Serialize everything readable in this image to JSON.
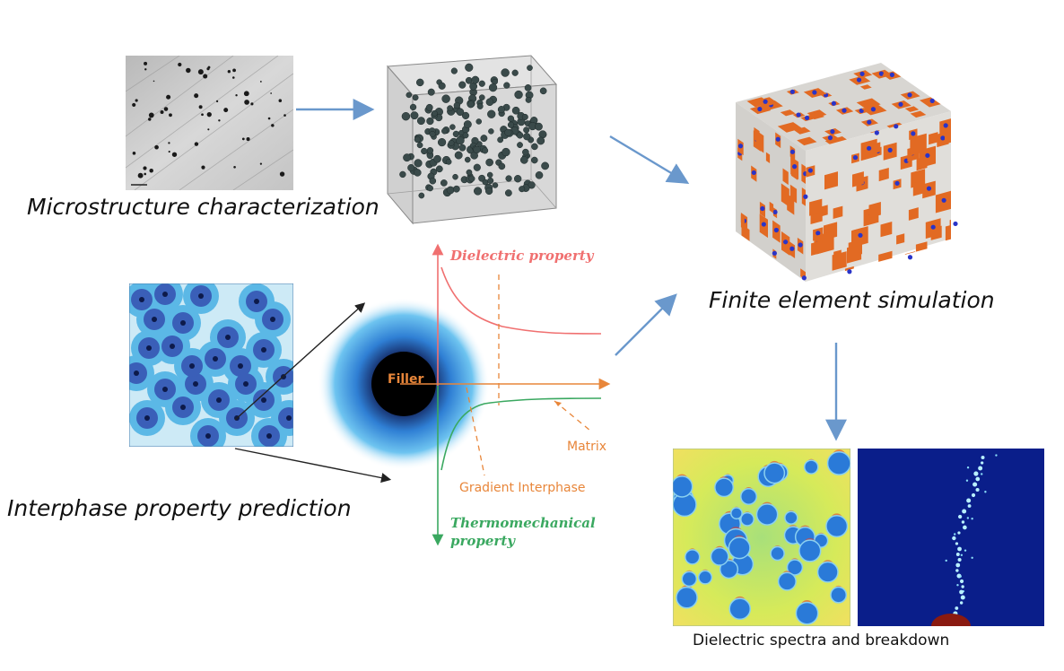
{
  "captions": {
    "microstructure": "Microstructure characterization",
    "interphase": "Interphase property prediction",
    "fem": "Finite element simulation",
    "spectra": "Dielectric spectra and breakdown"
  },
  "interphase_plot": {
    "dielectric_label": "Dielectric property",
    "thermo_label_line1": "Thermomechanical",
    "thermo_label_line2": "property",
    "filler_label": "Filler",
    "matrix_label": "Matrix",
    "gradient_label": "Gradient Interphase"
  },
  "colors": {
    "flow_arrow": "#6a98cc",
    "dielectric_curve": "#f07070",
    "thermo_curve": "#3aa860",
    "axis_orange": "#e8863a",
    "fem_orange": "#e26a23",
    "fem_blue": "#2a34c8"
  }
}
